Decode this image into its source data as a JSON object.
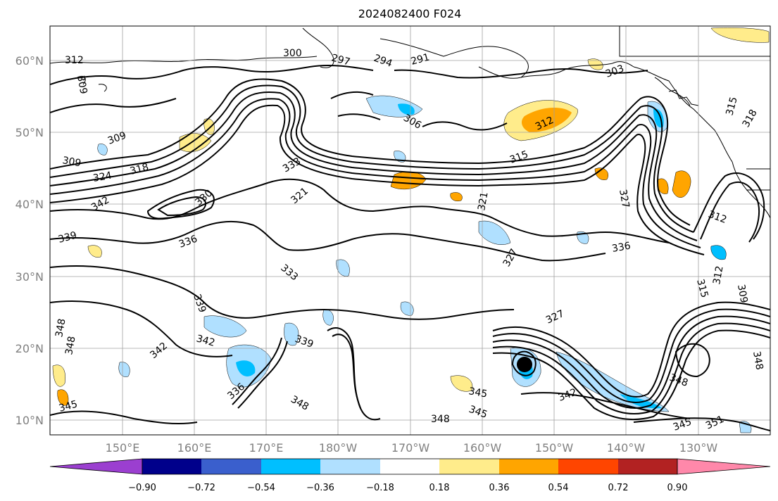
{
  "title": "2024082400 F024",
  "map": {
    "lat_labels": [
      "60°N",
      "50°N",
      "40°N",
      "30°N",
      "20°N",
      "10°N"
    ],
    "lon_labels": [
      "150°E",
      "160°E",
      "170°E",
      "180°W",
      "170°W",
      "160°W",
      "150°W",
      "140°W",
      "130°W"
    ],
    "tick_color": "#808080",
    "contour_color": "#000000",
    "coast_color": "#000000",
    "grid_color": "#a0a0a0"
  },
  "contour_labels": {
    "north": [
      "312",
      "309",
      "300",
      "297",
      "294",
      "291",
      "303",
      "306",
      "312",
      "315",
      "318",
      "309",
      "309",
      "318",
      "324",
      "327",
      "321",
      "342",
      "330",
      "339",
      "336",
      "312",
      "315",
      "333"
    ],
    "south": [
      "336",
      "327",
      "333",
      "321",
      "339",
      "342",
      "342",
      "339",
      "348",
      "348",
      "345",
      "336",
      "348",
      "345",
      "345",
      "342",
      "327",
      "348",
      "348",
      "345",
      "351",
      "348",
      "312",
      "309",
      "315"
    ]
  },
  "colorbar": {
    "ticks": [
      "−0.90",
      "−0.72",
      "−0.54",
      "−0.36",
      "−0.18",
      "0.18",
      "0.36",
      "0.54",
      "0.72",
      "0.90"
    ],
    "colors": [
      "#9b3fd0",
      "#00008b",
      "#3a5fcd",
      "#00bfff",
      "#b0e0ff",
      "#ffffff",
      "#ffec8b",
      "#ffa500",
      "#ff4500",
      "#b22222",
      "#ff88aa"
    ]
  }
}
